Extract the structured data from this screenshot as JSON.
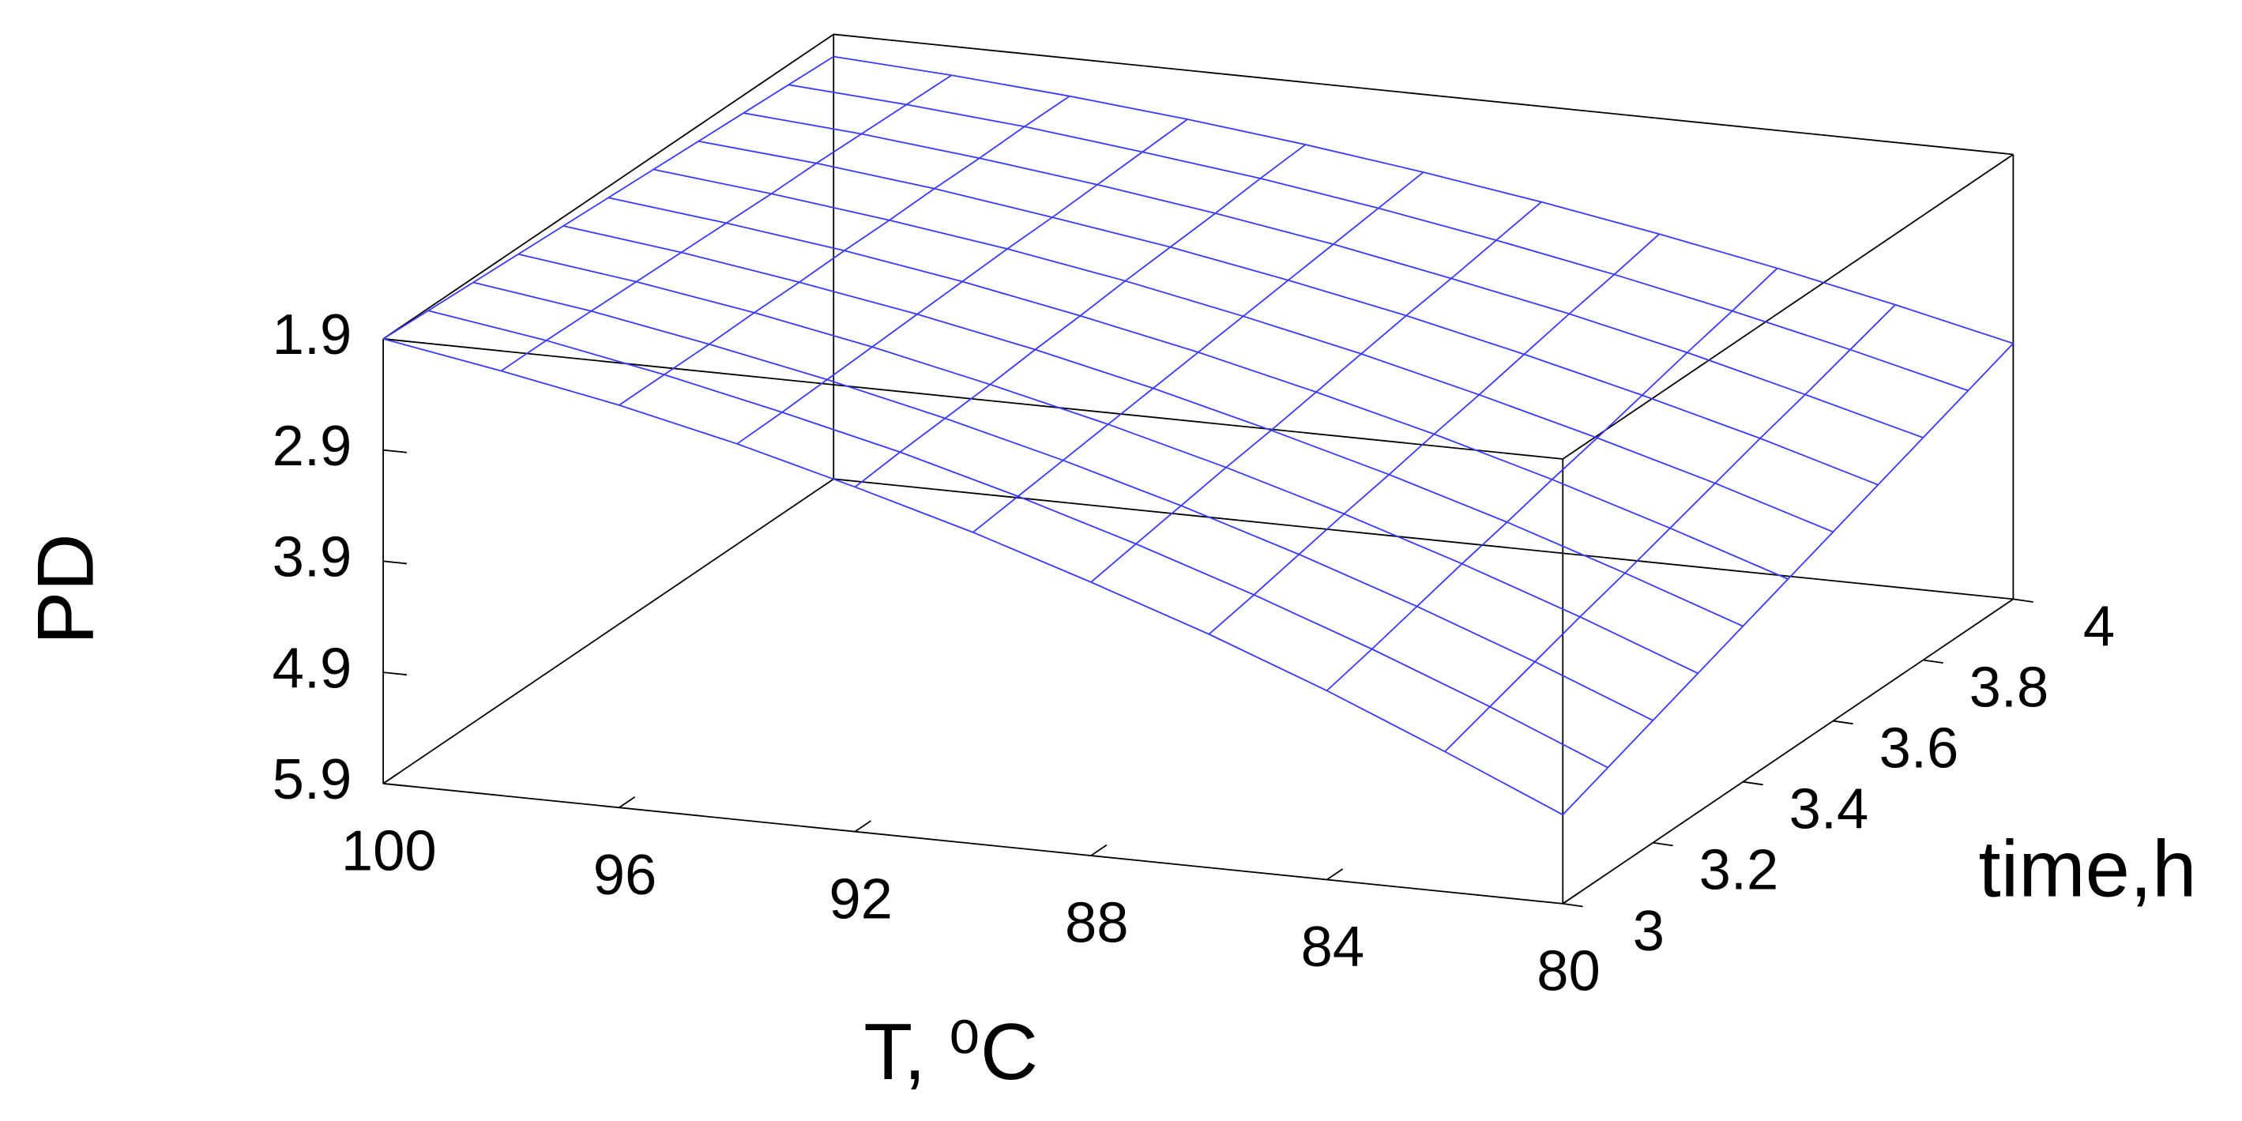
{
  "chart_data": {
    "type": "surface",
    "xlabel": "T, ⁰C",
    "ylabel": "time,h",
    "zlabel": "PD",
    "color": "#3a3aff",
    "x": [
      100,
      98,
      96,
      94,
      92,
      90,
      88,
      86,
      84,
      82,
      80
    ],
    "y": [
      3,
      3.1,
      3.2,
      3.3,
      3.4,
      3.5,
      3.6,
      3.7,
      3.8,
      3.9,
      4
    ],
    "z": [
      [
        1.9,
        2.08,
        2.28,
        2.52,
        2.8,
        3.1,
        3.44,
        3.8,
        4.2,
        4.64,
        5.1
      ],
      [
        1.92,
        2.08,
        2.28,
        2.51,
        2.76,
        3.05,
        3.37,
        3.72,
        4.1,
        4.51,
        4.95
      ],
      [
        1.94,
        2.09,
        2.28,
        2.49,
        2.73,
        3.0,
        3.3,
        3.63,
        3.99,
        4.38,
        4.8
      ],
      [
        1.96,
        2.1,
        2.27,
        2.47,
        2.7,
        2.95,
        3.23,
        3.54,
        3.88,
        4.25,
        4.65
      ],
      [
        1.98,
        2.11,
        2.27,
        2.45,
        2.66,
        2.9,
        3.17,
        3.46,
        3.78,
        4.13,
        4.5
      ],
      [
        2.0,
        2.12,
        2.26,
        2.43,
        2.63,
        2.85,
        3.1,
        3.37,
        3.67,
        4.0,
        4.35
      ],
      [
        2.02,
        2.13,
        2.26,
        2.41,
        2.59,
        2.8,
        3.03,
        3.29,
        3.57,
        3.87,
        4.2
      ],
      [
        2.04,
        2.13,
        2.25,
        2.4,
        2.56,
        2.75,
        2.96,
        3.2,
        3.46,
        3.74,
        4.05
      ],
      [
        2.06,
        2.14,
        2.25,
        2.38,
        2.53,
        2.7,
        2.9,
        3.11,
        3.35,
        3.62,
        3.9
      ],
      [
        2.08,
        2.15,
        2.24,
        2.36,
        2.49,
        2.65,
        2.83,
        3.03,
        3.25,
        3.49,
        3.75
      ],
      [
        2.1,
        2.16,
        2.24,
        2.34,
        2.46,
        2.6,
        2.76,
        2.94,
        3.14,
        3.36,
        3.6
      ]
    ],
    "xlim": [
      100,
      80
    ],
    "xticks": [
      100,
      96,
      92,
      88,
      84,
      80
    ],
    "ylim": [
      3,
      4
    ],
    "yticks": [
      3,
      3.2,
      3.4,
      3.6,
      3.8,
      4
    ],
    "zlim": [
      5.9,
      1.9
    ],
    "zticks": [
      1.9,
      2.9,
      3.9,
      4.9,
      5.9
    ]
  }
}
